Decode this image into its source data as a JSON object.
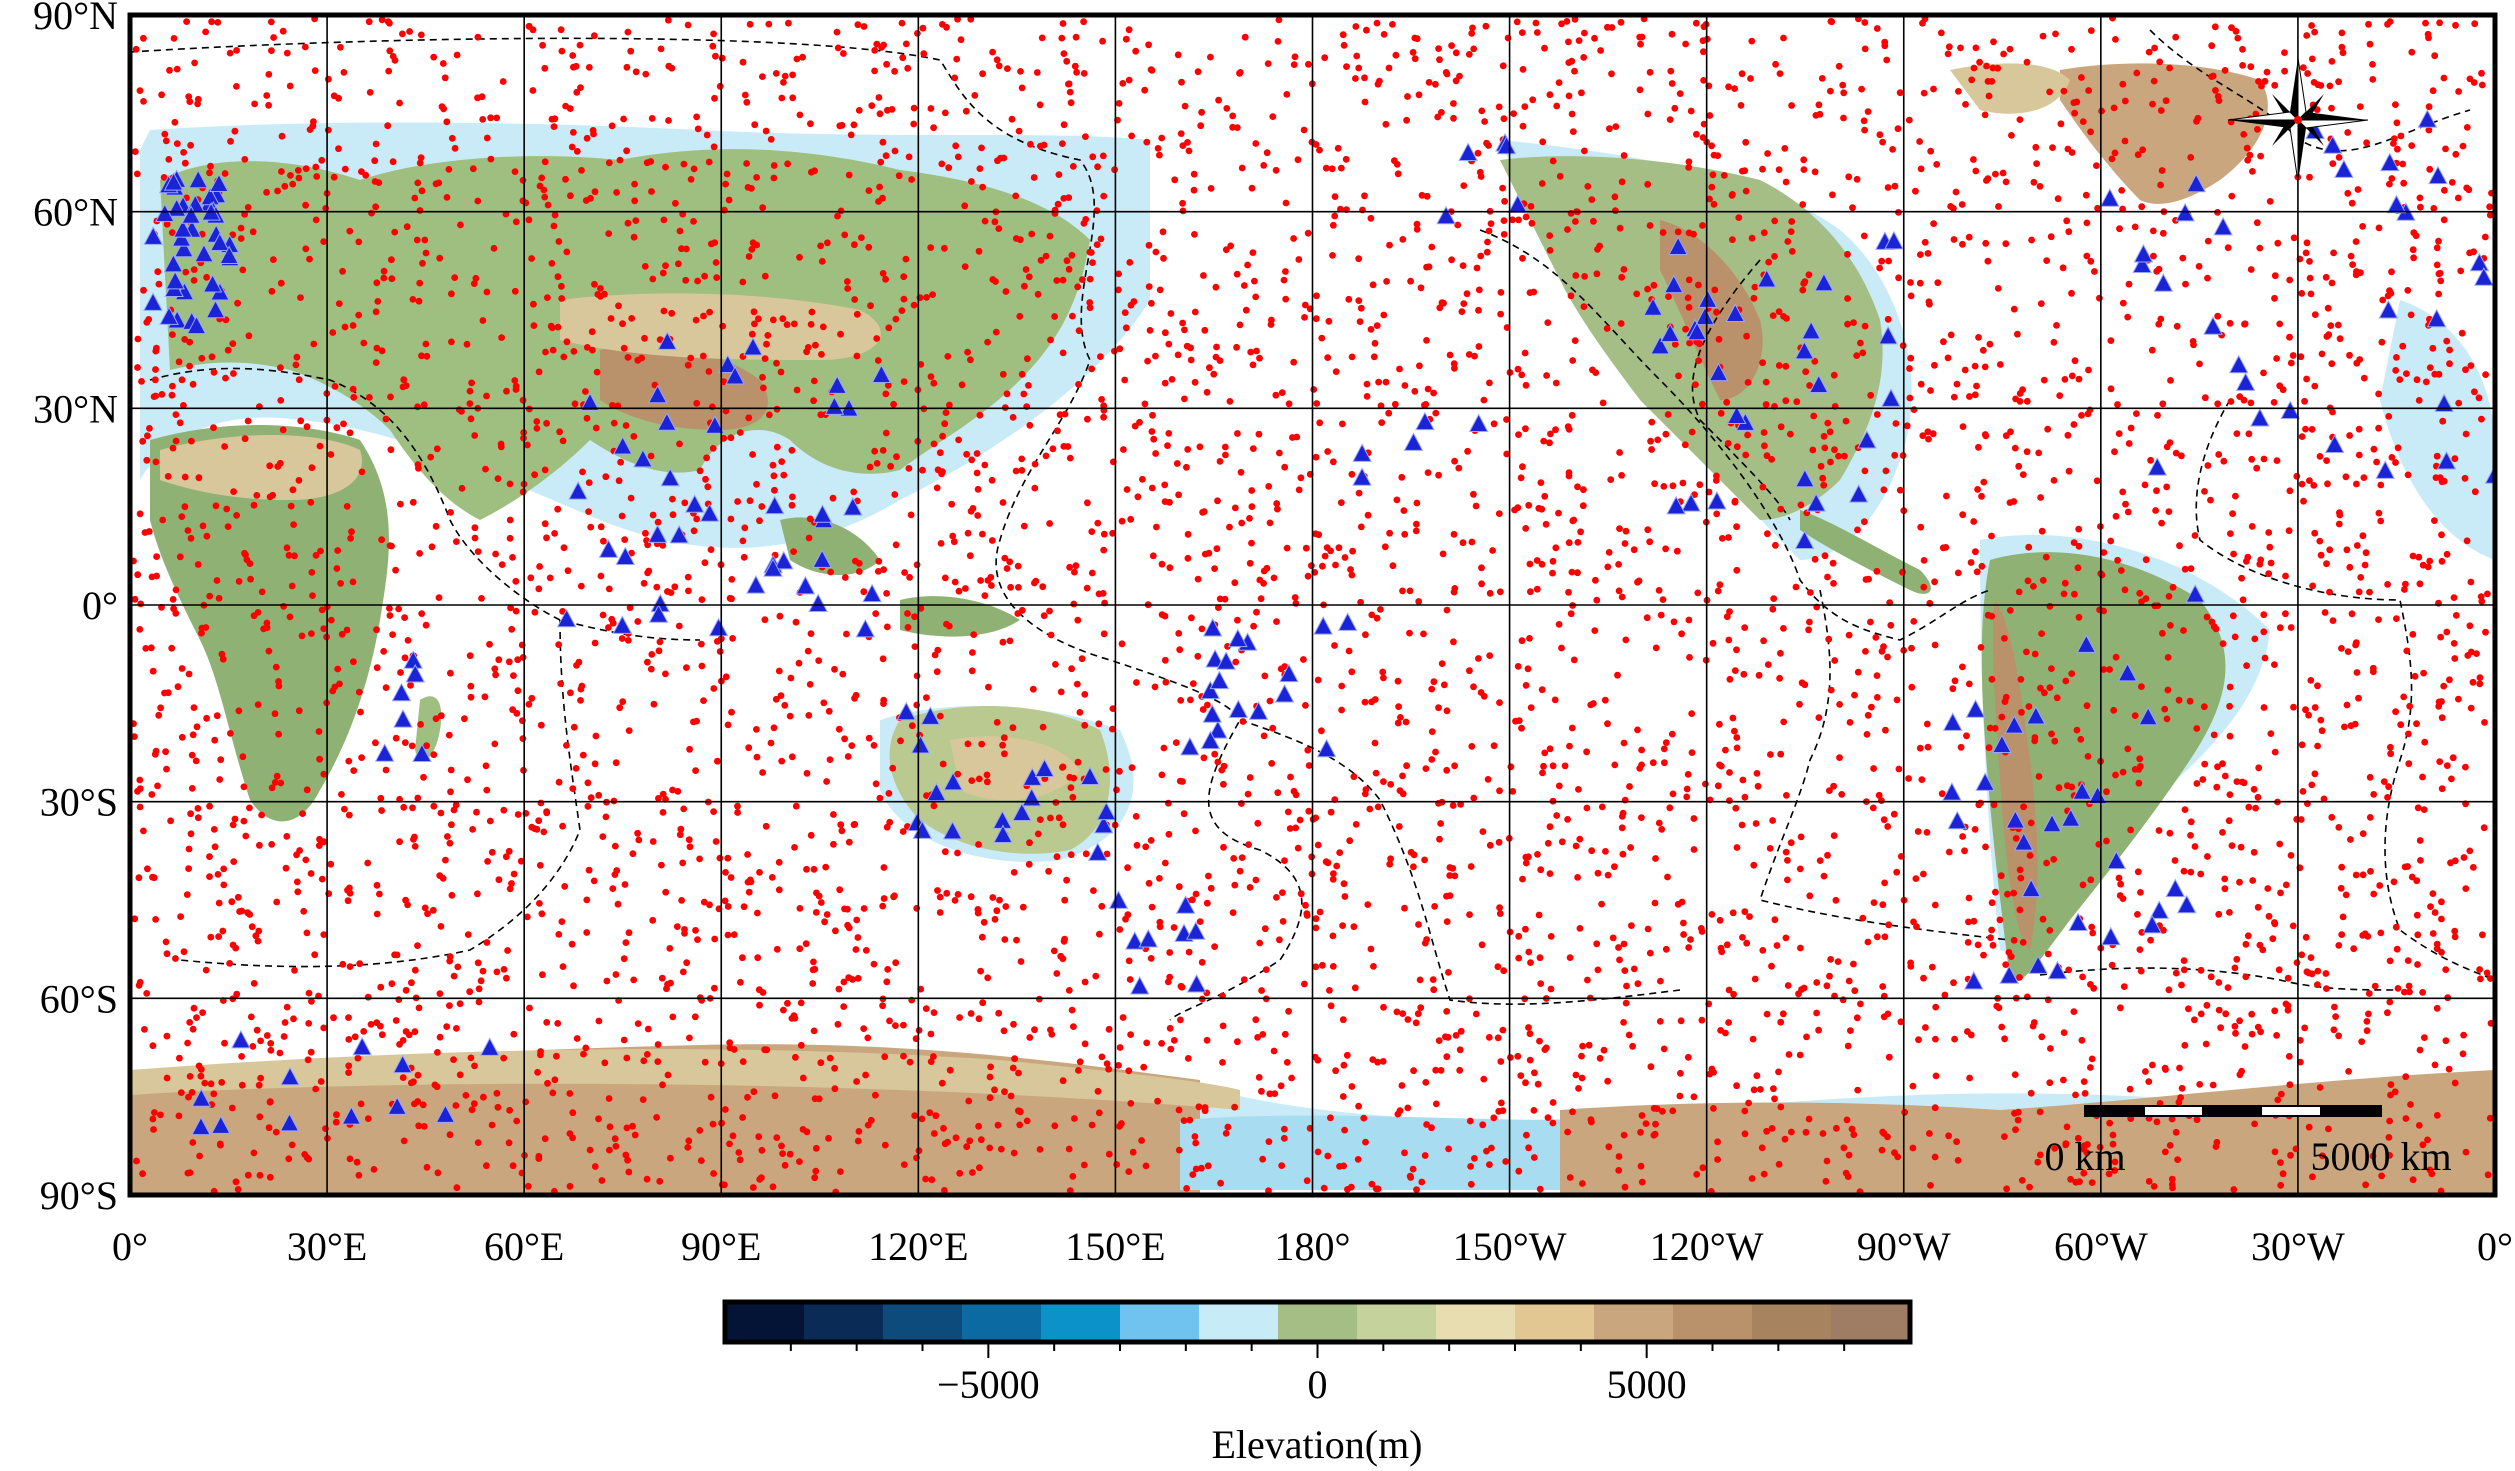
{
  "map": {
    "projection": "equirectangular",
    "lon_range": [
      0,
      360
    ],
    "lat_range": [
      -90,
      90
    ],
    "grid_step_deg": 30,
    "lat_labels": [
      "90°N",
      "60°N",
      "30°N",
      "0°",
      "30°S",
      "60°S",
      "90°S"
    ],
    "lon_labels": [
      "0°",
      "30°E",
      "60°E",
      "90°E",
      "120°E",
      "150°E",
      "180°",
      "150°W",
      "120°W",
      "90°W",
      "60°W",
      "30°W",
      "0°"
    ],
    "scale_bar": {
      "left_label": "0 km",
      "right_label": "5000 km"
    },
    "compass": "compass-rose",
    "colors": {
      "ocean": "#ffffff",
      "shelf": "#c9ebf7",
      "shallow": "#a8dcf0",
      "lowland": "#7fa86a",
      "hills": "#b9c98f",
      "upland": "#d8c79a",
      "mountain": "#b9916a",
      "high": "#a7845f",
      "ice": "#c9a67e",
      "station": "#ff0000",
      "triangle": "#1a23d6",
      "boundary": "#000000"
    },
    "legend_symbols": {
      "station_marker": "red-dot",
      "special_marker": "blue-triangle"
    }
  },
  "colorbar": {
    "label": "Elevation(m)",
    "ticks": [
      {
        "value": -5000,
        "label": "−5000"
      },
      {
        "value": 0,
        "label": "0"
      },
      {
        "value": 5000,
        "label": "5000"
      }
    ],
    "range": [
      -9000,
      9000
    ],
    "colors": [
      "#041436",
      "#0a2b55",
      "#0c4b7c",
      "#0a6aa1",
      "#0b93c9",
      "#71c3ef",
      "#c8ebf8",
      "#a4be86",
      "#c6d29c",
      "#e8ddb0",
      "#e3c792",
      "#c9a67e",
      "#b9916a",
      "#a7845f",
      "#9e7d64"
    ]
  }
}
